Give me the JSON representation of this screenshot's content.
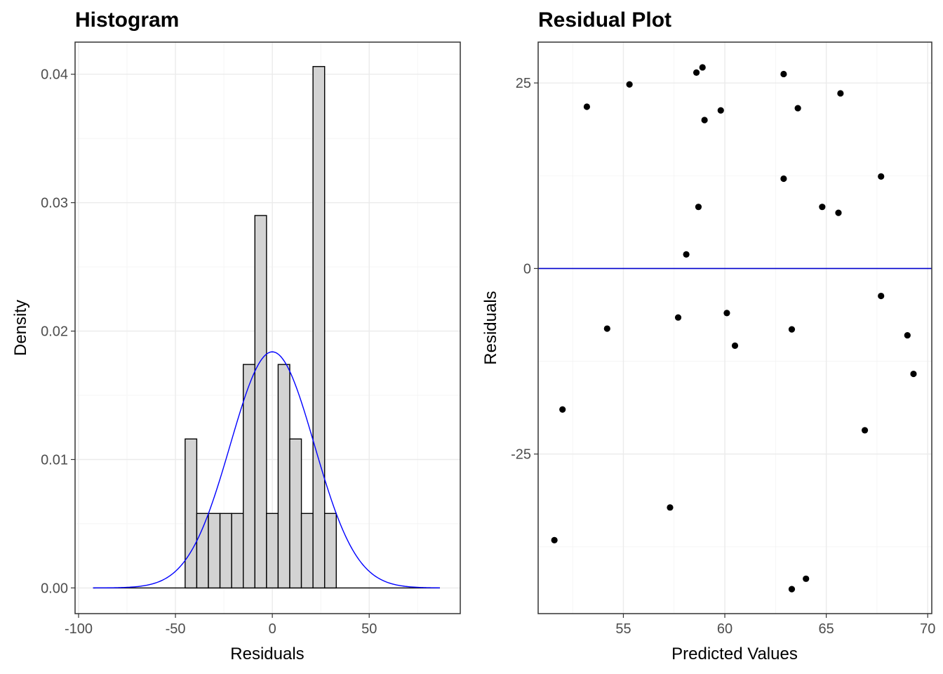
{
  "chart_data": [
    {
      "type": "bar",
      "title": "Histogram",
      "xlabel": "Residuals",
      "ylabel": "Density",
      "xlim": [
        -101.8,
        97.0
      ],
      "ylim": [
        -0.002,
        0.0425
      ],
      "grid": true,
      "xticks": [
        -100,
        -50,
        0,
        50
      ],
      "xtick_labels": [
        "-100",
        "-50",
        "0",
        "50"
      ],
      "yticks": [
        0.0,
        0.01,
        0.02,
        0.03,
        0.04
      ],
      "ytick_labels": [
        "0.00",
        "0.01",
        "0.02",
        "0.03",
        "0.04"
      ],
      "baseline_range": [
        -92.5,
        86.5
      ],
      "bins": [
        {
          "x0": -45.0,
          "x1": -39.0,
          "density": 0.0116
        },
        {
          "x0": -39.0,
          "x1": -33.0,
          "density": 0.0058
        },
        {
          "x0": -33.0,
          "x1": -27.0,
          "density": 0.0058
        },
        {
          "x0": -27.0,
          "x1": -21.0,
          "density": 0.0058
        },
        {
          "x0": -21.0,
          "x1": -15.0,
          "density": 0.0058
        },
        {
          "x0": -15.0,
          "x1": -9.0,
          "density": 0.0174
        },
        {
          "x0": -9.0,
          "x1": -3.0,
          "density": 0.029
        },
        {
          "x0": -3.0,
          "x1": 3.0,
          "density": 0.0058
        },
        {
          "x0": 3.0,
          "x1": 9.0,
          "density": 0.0174
        },
        {
          "x0": 9.0,
          "x1": 15.0,
          "density": 0.0116
        },
        {
          "x0": 15.0,
          "x1": 21.0,
          "density": 0.0058
        },
        {
          "x0": 21.0,
          "x1": 27.0,
          "density": 0.0406
        },
        {
          "x0": 27.0,
          "x1": 33.0,
          "density": 0.0058
        }
      ],
      "density_curve": {
        "type": "normal",
        "mean": 0.0,
        "sd": 21.7,
        "x_range": [
          -92.5,
          86.5
        ],
        "color": "#0000ff"
      }
    },
    {
      "type": "scatter",
      "title": "Residual Plot",
      "xlabel": "Predicted Values",
      "ylabel": "Residuals",
      "xlim": [
        50.8,
        70.2
      ],
      "ylim": [
        -46.5,
        30.5
      ],
      "grid": true,
      "xticks": [
        55,
        60,
        65,
        70
      ],
      "xtick_labels": [
        "55",
        "60",
        "65",
        "70"
      ],
      "yticks": [
        -25,
        0,
        25
      ],
      "ytick_labels": [
        "-25",
        "0",
        "25"
      ],
      "hline": {
        "y": 0,
        "color": "#0000cd"
      },
      "points": [
        {
          "x": 51.6,
          "y": -36.6
        },
        {
          "x": 52.0,
          "y": -19.0
        },
        {
          "x": 53.2,
          "y": 21.8
        },
        {
          "x": 54.2,
          "y": -8.1
        },
        {
          "x": 55.3,
          "y": 24.8
        },
        {
          "x": 57.3,
          "y": -32.2
        },
        {
          "x": 57.7,
          "y": -6.6
        },
        {
          "x": 58.1,
          "y": 1.9
        },
        {
          "x": 58.6,
          "y": 26.4
        },
        {
          "x": 58.7,
          "y": 8.3
        },
        {
          "x": 58.9,
          "y": 27.1
        },
        {
          "x": 59.0,
          "y": 20.0
        },
        {
          "x": 59.8,
          "y": 21.3
        },
        {
          "x": 60.1,
          "y": -6.0
        },
        {
          "x": 60.5,
          "y": -10.4
        },
        {
          "x": 62.9,
          "y": 26.2
        },
        {
          "x": 62.9,
          "y": 12.1
        },
        {
          "x": 63.3,
          "y": -8.2
        },
        {
          "x": 63.3,
          "y": -43.2
        },
        {
          "x": 63.6,
          "y": 21.6
        },
        {
          "x": 64.0,
          "y": -41.8
        },
        {
          "x": 64.8,
          "y": 8.3
        },
        {
          "x": 65.6,
          "y": 7.5
        },
        {
          "x": 65.7,
          "y": 23.6
        },
        {
          "x": 66.9,
          "y": -21.8
        },
        {
          "x": 67.7,
          "y": 12.4
        },
        {
          "x": 67.7,
          "y": -3.7
        },
        {
          "x": 69.0,
          "y": -9.0
        },
        {
          "x": 69.3,
          "y": -14.2
        }
      ]
    }
  ]
}
